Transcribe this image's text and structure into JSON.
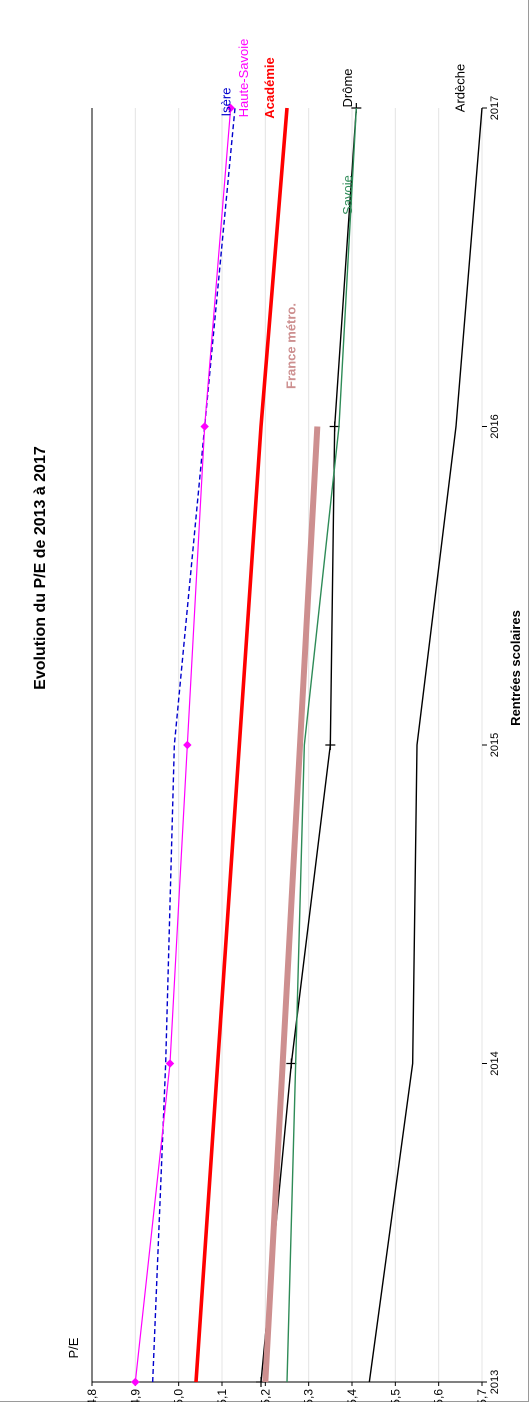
{
  "chart_data": {
    "type": "line",
    "title": "Evolution du P/E de 2013 à 2017",
    "xlabel": "Rentrées scolaires",
    "ylabel": "P/E",
    "categories": [
      2013,
      2014,
      2015,
      2016,
      2017
    ],
    "x_tick_labels": [
      "2013",
      "2014",
      "2015",
      "2016",
      "2017"
    ],
    "ylim": [
      4.8,
      5.7
    ],
    "y_ticks": [
      4.8,
      4.9,
      5.0,
      5.1,
      5.2,
      5.3,
      5.4,
      5.5,
      5.6,
      5.7
    ],
    "y_tick_labels": [
      "4,8",
      "4,9",
      "5,0",
      "5,1",
      "5,2",
      "5,3",
      "5,4",
      "5,5",
      "5,6",
      "5,7"
    ],
    "grid": "horizontal",
    "series": [
      {
        "name": "Ardèche",
        "values": [
          5.44,
          5.54,
          5.55,
          5.64,
          5.7
        ],
        "color": "#000000"
      },
      {
        "name": "Drôme",
        "values": [
          5.19,
          5.26,
          5.35,
          5.36,
          5.41
        ],
        "color": "#000000"
      },
      {
        "name": "Savoie",
        "values": [
          5.25,
          5.27,
          5.29,
          5.37,
          5.41
        ],
        "color": "#2e8b57"
      },
      {
        "name": "France métro.",
        "values": [
          5.2,
          5.24,
          5.28,
          5.32,
          null
        ],
        "color": "#cd8f8f"
      },
      {
        "name": "Académie",
        "values": [
          5.04,
          5.09,
          5.14,
          5.19,
          5.25
        ],
        "color": "#ff0000"
      },
      {
        "name": "Isère",
        "values": [
          4.94,
          4.97,
          4.99,
          5.06,
          5.13
        ],
        "color": "#0000cd"
      },
      {
        "name": "Haute-Savoie",
        "values": [
          4.9,
          4.98,
          5.02,
          5.06,
          5.12
        ],
        "color": "#ff00ff"
      }
    ]
  }
}
